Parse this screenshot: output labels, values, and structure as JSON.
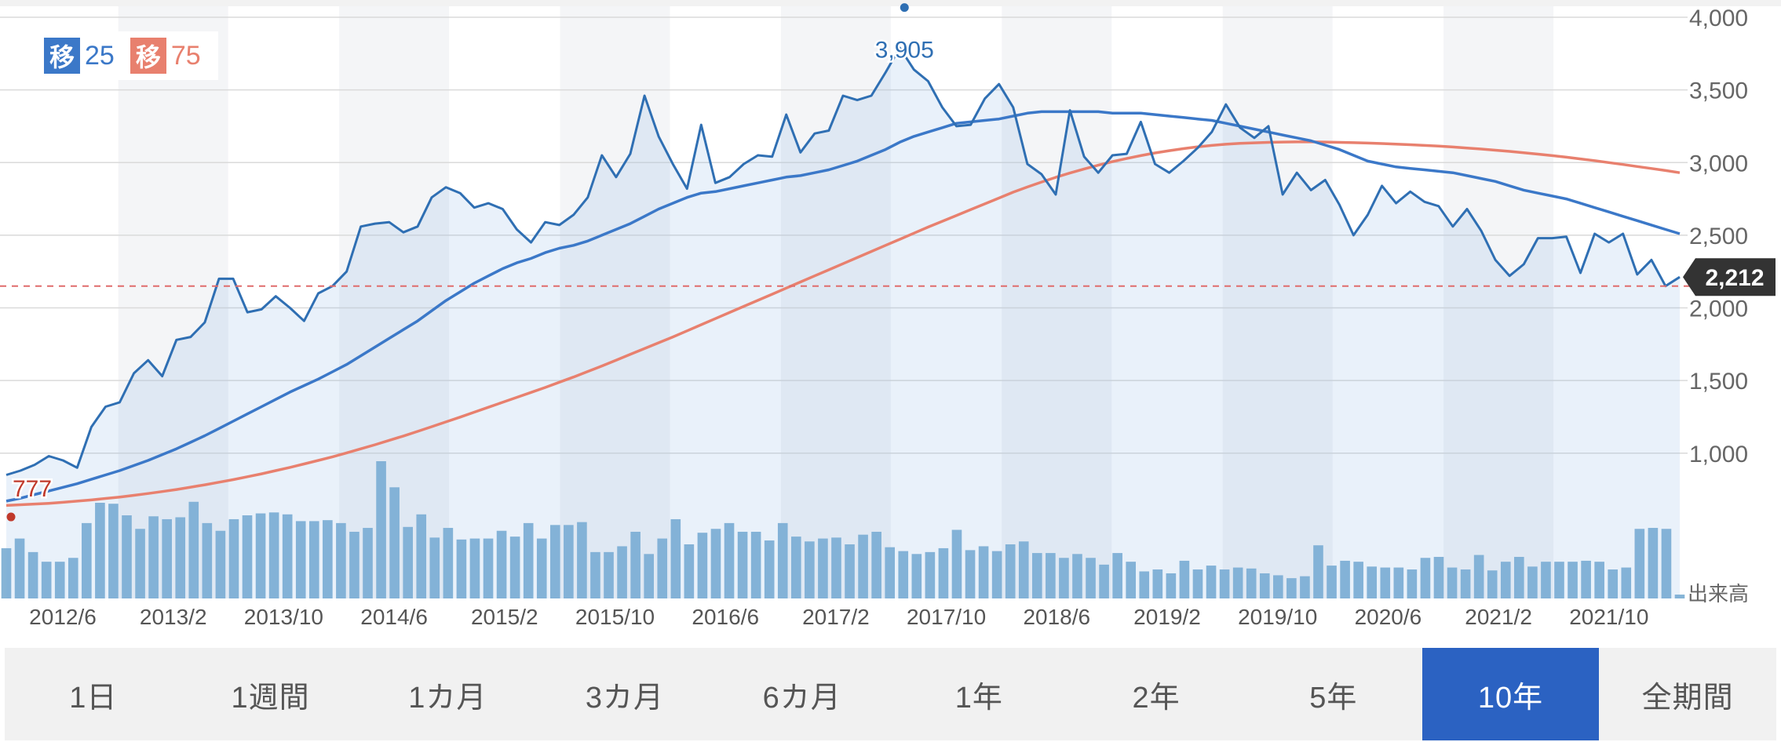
{
  "legend": [
    {
      "badge": "移",
      "value": "25",
      "color": "#3b78c8"
    },
    {
      "badge": "移",
      "value": "75",
      "color": "#e8806e"
    }
  ],
  "tabs": [
    "1日",
    "1週間",
    "1カ月",
    "3カ月",
    "6カ月",
    "1年",
    "2年",
    "5年",
    "10年",
    "全期間"
  ],
  "active_tab": "10年",
  "chart_data": {
    "type": "line",
    "ylim": [
      0,
      4000
    ],
    "y_ticks": [
      "4,000",
      "3,500",
      "3,000",
      "2,500",
      "2,000",
      "1,500",
      "1,000"
    ],
    "y_tick_values": [
      4000,
      3500,
      3000,
      2500,
      2000,
      1500,
      1000
    ],
    "volume_label": "出来高",
    "x_labels": [
      "2012/6",
      "2013/2",
      "2013/10",
      "2014/6",
      "2015/2",
      "2015/10",
      "2016/6",
      "2017/2",
      "2017/10",
      "2018/6",
      "2019/2",
      "2019/10",
      "2020/6",
      "2021/2",
      "2021/10"
    ],
    "max_label": "3,905",
    "max_value": 3905,
    "min_label": "777",
    "min_value": 777,
    "current_label": "2,212",
    "current_value": 2212,
    "reference_value": 2150,
    "price_color": "#2f6fb3",
    "ma25_color": "#3b78c8",
    "ma75_color": "#e8806e",
    "volume_color": "#86b4d6",
    "series": [
      {
        "key": "price",
        "values": [
          850,
          880,
          920,
          980,
          950,
          900,
          1180,
          1320,
          1350,
          1550,
          1640,
          1530,
          1780,
          1800,
          1900,
          2200,
          2200,
          1970,
          1990,
          2080,
          2000,
          1910,
          2100,
          2150,
          2250,
          2560,
          2580,
          2590,
          2520,
          2560,
          2760,
          2830,
          2790,
          2690,
          2720,
          2680,
          2540,
          2450,
          2590,
          2570,
          2640,
          2760,
          3050,
          2900,
          3060,
          3460,
          3180,
          2990,
          2820,
          3260,
          2860,
          2900,
          2990,
          3050,
          3040,
          3330,
          3070,
          3200,
          3220,
          3460,
          3430,
          3460,
          3620,
          3790,
          3640,
          3560,
          3380,
          3250,
          3260,
          3440,
          3540,
          3380,
          2990,
          2920,
          2780,
          3360,
          3040,
          2930,
          3050,
          3060,
          3280,
          2990,
          2930,
          3010,
          3100,
          3210,
          3400,
          3240,
          3170,
          3250,
          2780,
          2930,
          2810,
          2880,
          2710,
          2500,
          2640,
          2840,
          2720,
          2800,
          2730,
          2700,
          2560,
          2680,
          2530,
          2330,
          2220,
          2300,
          2480,
          2480,
          2490,
          2240,
          2510,
          2450,
          2510,
          2230,
          2330,
          2150,
          2212
        ]
      },
      {
        "key": "ma25",
        "name": "25",
        "values": [
          670,
          690,
          715,
          740,
          765,
          790,
          820,
          850,
          880,
          915,
          950,
          990,
          1030,
          1075,
          1120,
          1170,
          1220,
          1270,
          1320,
          1370,
          1420,
          1465,
          1510,
          1560,
          1610,
          1670,
          1730,
          1790,
          1850,
          1910,
          1980,
          2050,
          2110,
          2170,
          2220,
          2270,
          2310,
          2340,
          2380,
          2410,
          2430,
          2460,
          2500,
          2540,
          2580,
          2630,
          2680,
          2720,
          2760,
          2790,
          2800,
          2820,
          2840,
          2860,
          2880,
          2900,
          2910,
          2930,
          2950,
          2980,
          3010,
          3050,
          3090,
          3140,
          3180,
          3210,
          3240,
          3270,
          3280,
          3290,
          3300,
          3320,
          3340,
          3350,
          3350,
          3350,
          3350,
          3350,
          3340,
          3340,
          3340,
          3330,
          3320,
          3310,
          3300,
          3290,
          3270,
          3250,
          3230,
          3210,
          3190,
          3170,
          3150,
          3120,
          3090,
          3050,
          3010,
          2990,
          2970,
          2960,
          2950,
          2940,
          2930,
          2910,
          2890,
          2870,
          2840,
          2810,
          2790,
          2770,
          2750,
          2720,
          2690,
          2660,
          2630,
          2600,
          2570,
          2540,
          2510
        ]
      },
      {
        "key": "ma75",
        "name": "75",
        "values": [
          640,
          645,
          650,
          655,
          662,
          670,
          678,
          688,
          698,
          710,
          722,
          736,
          750,
          766,
          782,
          800,
          818,
          838,
          858,
          880,
          902,
          926,
          950,
          975,
          1002,
          1030,
          1058,
          1088,
          1118,
          1150,
          1182,
          1215,
          1248,
          1282,
          1316,
          1350,
          1384,
          1418,
          1452,
          1488,
          1524,
          1562,
          1600,
          1640,
          1680,
          1720,
          1760,
          1800,
          1842,
          1884,
          1926,
          1968,
          2010,
          2052,
          2094,
          2136,
          2178,
          2220,
          2262,
          2304,
          2346,
          2388,
          2430,
          2472,
          2514,
          2556,
          2596,
          2636,
          2676,
          2716,
          2756,
          2796,
          2832,
          2866,
          2898,
          2928,
          2956,
          2982,
          3006,
          3028,
          3048,
          3066,
          3082,
          3096,
          3108,
          3118,
          3126,
          3132,
          3136,
          3139,
          3141,
          3142,
          3142,
          3141,
          3139,
          3137,
          3134,
          3131,
          3127,
          3123,
          3118,
          3113,
          3107,
          3100,
          3093,
          3085,
          3077,
          3068,
          3058,
          3048,
          3037,
          3025,
          3013,
          3000,
          2987,
          2973,
          2959,
          2945,
          2930
        ]
      }
    ],
    "volume_values": [
      520,
      620,
      480,
      380,
      380,
      420,
      780,
      990,
      980,
      860,
      720,
      850,
      820,
      840,
      1000,
      780,
      700,
      820,
      860,
      880,
      890,
      870,
      800,
      800,
      810,
      780,
      690,
      730,
      1420,
      1150,
      740,
      870,
      630,
      730,
      610,
      620,
      620,
      700,
      640,
      780,
      620,
      760,
      760,
      790,
      480,
      480,
      540,
      690,
      460,
      620,
      820,
      560,
      680,
      720,
      780,
      690,
      690,
      600,
      780,
      640,
      590,
      620,
      630,
      560,
      660,
      690,
      530,
      490,
      460,
      480,
      520,
      710,
      500,
      540,
      490,
      560,
      590,
      470,
      470,
      420,
      460,
      420,
      350,
      470,
      380,
      280,
      300,
      260,
      390,
      300,
      340,
      300,
      320,
      310,
      260,
      240,
      210,
      230,
      550,
      340,
      390,
      380,
      330,
      320,
      320,
      300,
      420,
      430,
      320,
      300,
      450,
      290,
      380,
      430,
      330,
      380,
      380,
      380,
      390,
      380,
      300,
      320,
      720,
      730,
      720,
      40
    ]
  }
}
